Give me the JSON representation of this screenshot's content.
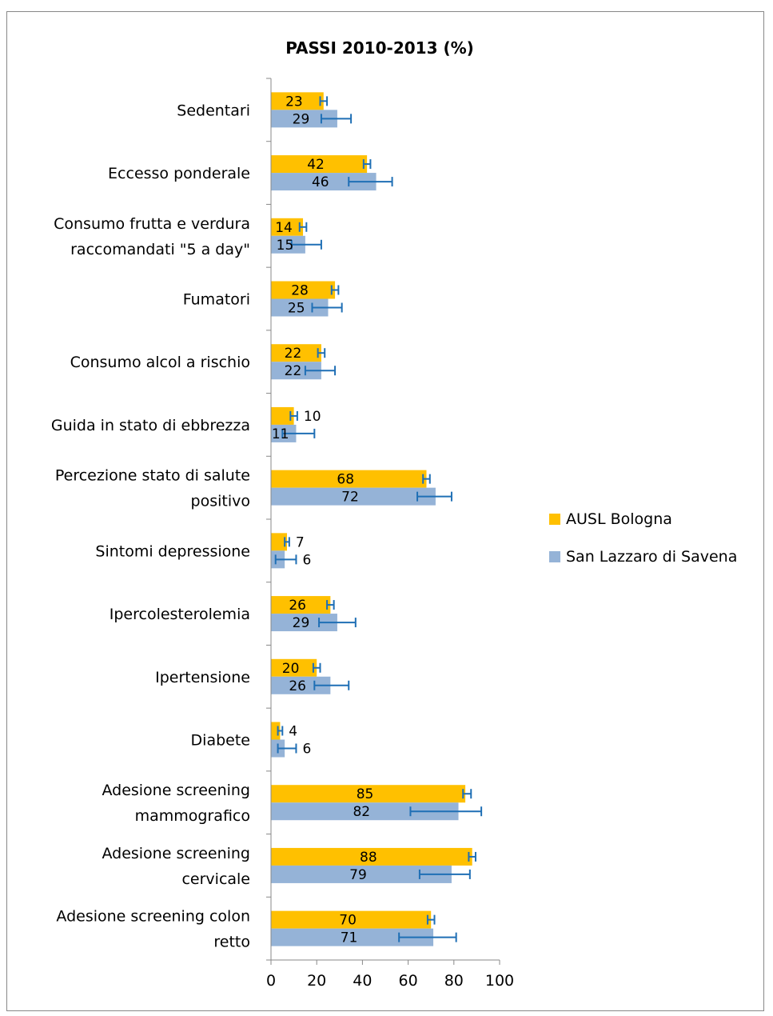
{
  "chart_data": {
    "type": "bar",
    "orientation": "horizontal",
    "title": "PASSI 2010-2013 (%)",
    "xlim": [
      0,
      100
    ],
    "xticks": [
      "0",
      "20",
      "40",
      "60",
      "80",
      "100"
    ],
    "grid": false,
    "legend_position": "right",
    "categories": [
      [
        "Sedentari"
      ],
      [
        "Eccesso ponderale"
      ],
      [
        "Consumo frutta e verdura",
        "raccomandati \"5 a day\""
      ],
      [
        "Fumatori"
      ],
      [
        "Consumo alcol a rischio"
      ],
      [
        "Guida in stato di ebbrezza"
      ],
      [
        "Percezione stato di salute",
        "positivo"
      ],
      [
        "Sintomi depressione"
      ],
      [
        "Ipercolesterolemia"
      ],
      [
        "Ipertensione"
      ],
      [
        "Diabete"
      ],
      [
        "Adesione screening",
        "mammografico"
      ],
      [
        "Adesione screening",
        "cervicale"
      ],
      [
        "Adesione screening colon",
        "retto"
      ]
    ],
    "series": [
      {
        "name": "AUSL Bologna",
        "color": "#FFC000",
        "values": [
          23,
          42,
          14,
          28,
          22,
          10,
          68,
          7,
          26,
          20,
          4,
          85,
          88,
          70
        ],
        "error_low": [
          21.5,
          40.5,
          12.5,
          26.5,
          20.5,
          8.5,
          66.5,
          6,
          24.5,
          18.5,
          3,
          84,
          86.5,
          68.5
        ],
        "error_high": [
          24.5,
          43.5,
          15.5,
          29.5,
          23.5,
          11.5,
          69.5,
          8,
          27.5,
          21.5,
          5,
          87.5,
          89.5,
          71.5
        ]
      },
      {
        "name": "San Lazzaro di Savena",
        "color": "#95B3D7",
        "values": [
          29,
          46,
          15,
          25,
          22,
          11,
          72,
          6,
          29,
          26,
          6,
          82,
          79,
          71
        ],
        "error_low": [
          22,
          34,
          9,
          18,
          15,
          5,
          64,
          2,
          21,
          19,
          3,
          61,
          65,
          56
        ],
        "error_high": [
          35,
          53,
          22,
          31,
          28,
          19,
          79,
          11,
          37,
          34,
          11,
          92,
          87,
          81
        ]
      }
    ],
    "error_bar_color": "#1F6FB5"
  }
}
